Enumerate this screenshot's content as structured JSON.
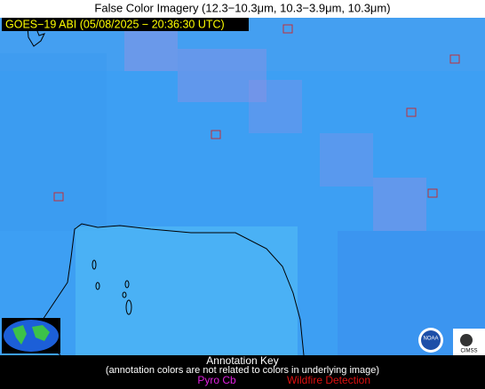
{
  "header": {
    "title": "False Color Imagery (12.3−10.3μm, 10.3−3.9μm, 10.3μm)"
  },
  "overlay": {
    "label": "GOES−19 ABI (05/08/2025 − 20:36:30 UTC)"
  },
  "logos": {
    "noaa": "NOAA",
    "cimss": "CIMSS"
  },
  "annotation_key": {
    "title": "Annotation Key",
    "note": "(annotation colors are not related to colors in underlying image)",
    "items": [
      "Pyro Cb",
      "Wildfire Detection"
    ]
  }
}
